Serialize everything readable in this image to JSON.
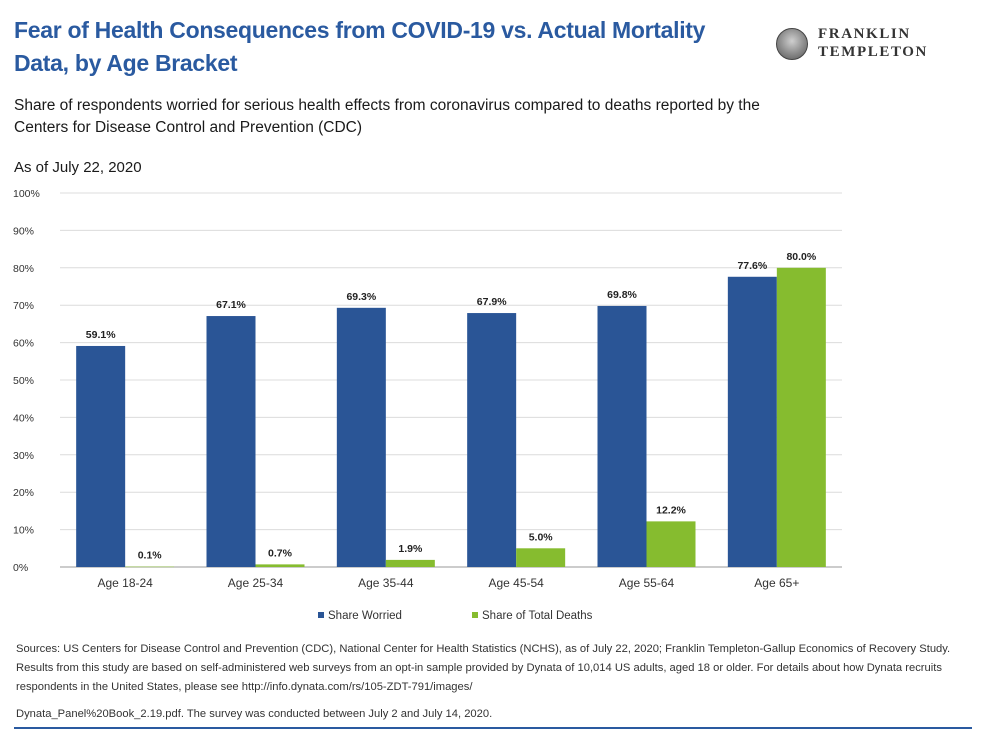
{
  "header": {
    "title": "Fear of Health Consequences from COVID-19 vs. Actual Mortality Data, by Age Bracket",
    "logo_line1": "FRANKLIN",
    "logo_line2": "TEMPLETON",
    "subtitle": "Share of respondents worried for serious health effects from coronavirus compared to deaths reported by the Centers for Disease Control and Prevention (CDC)",
    "as_of": "As of July 22, 2020"
  },
  "chart_data": {
    "type": "bar",
    "categories": [
      "Age 18-24",
      "Age 25-34",
      "Age 35-44",
      "Age 45-54",
      "Age 55-64",
      "Age 65+"
    ],
    "series": [
      {
        "name": "Share Worried",
        "values": [
          59.1,
          67.1,
          69.3,
          67.9,
          69.8,
          77.6
        ],
        "labels": [
          "59.1%",
          "67.1%",
          "69.3%",
          "67.9%",
          "69.8%",
          "77.6%"
        ],
        "color": "#2a5596"
      },
      {
        "name": "Share of Total Deaths",
        "values": [
          0.1,
          0.7,
          1.9,
          5.0,
          12.2,
          80.0
        ],
        "labels": [
          "0.1%",
          "0.7%",
          "1.9%",
          "5.0%",
          "12.2%",
          "80.0%"
        ],
        "color": "#86bc2f"
      }
    ],
    "yticks": [
      "0%",
      "10%",
      "20%",
      "30%",
      "40%",
      "50%",
      "60%",
      "70%",
      "80%",
      "90%",
      "100%"
    ],
    "ylim": [
      0,
      100
    ],
    "grid": true,
    "legend_position": "bottom"
  },
  "footer": {
    "sources": "Sources: US Centers for Disease Control and Prevention (CDC), National Center for Health Statistics (NCHS), as of July 22, 2020; Franklin Templeton-Gallup Economics of Recovery Study. Results from this study are based on self-administered web surveys from an opt-in sample provided by Dynata of 10,014 US adults, aged 18 or older. For details about how Dynata recruits respondents in the United States, please see http://info.dynata.com/rs/105-ZDT-791/images/",
    "sources_cont": "Dynata_Panel%20Book_2.19.pdf. The survey was conducted between July 2 and July 14, 2020."
  }
}
